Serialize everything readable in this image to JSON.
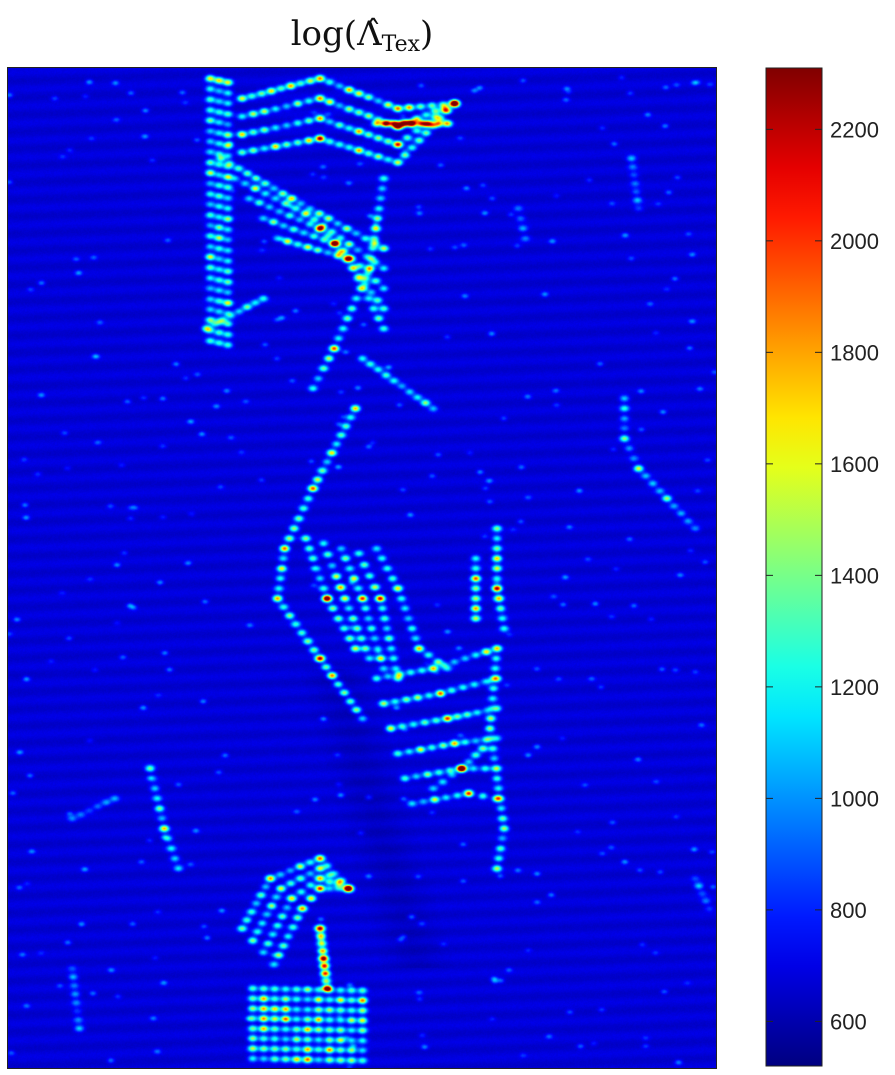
{
  "chart_data": {
    "type": "heatmap",
    "title": "log(Λ̂Tex)",
    "title_parts": {
      "base": "log(",
      "symbol": "Λ̂",
      "subscript": "Tex",
      "close": ")"
    },
    "colormap": "jet",
    "colorbar": {
      "range": [
        520,
        2310
      ],
      "ticks": [
        600,
        800,
        1000,
        1200,
        1400,
        1600,
        1800,
        2000,
        2200
      ],
      "tick_labels": [
        "600",
        "800",
        "1000",
        "1200",
        "1400",
        "1600",
        "1800",
        "2000",
        "2200"
      ]
    },
    "xlabel": "",
    "ylabel": "",
    "grid": false,
    "background_level": 640,
    "texture_bands": [
      {
        "name": "upper-left column",
        "x": [
          0.26,
          0.33
        ],
        "y": [
          0.0,
          0.28
        ],
        "peak": 1950
      },
      {
        "name": "upper arc",
        "x": [
          0.32,
          0.64
        ],
        "y": [
          0.0,
          0.08
        ],
        "peak": 2150
      },
      {
        "name": "upper diagonal",
        "x": [
          0.33,
          0.55
        ],
        "y": [
          0.08,
          0.36
        ],
        "peak": 2050
      },
      {
        "name": "middle chevron",
        "x": [
          0.37,
          0.72
        ],
        "y": [
          0.36,
          0.7
        ],
        "peak": 1950
      },
      {
        "name": "lower diagonal",
        "x": [
          0.52,
          0.72
        ],
        "y": [
          0.6,
          0.8
        ],
        "peak": 1700
      },
      {
        "name": "lower arcs",
        "x": [
          0.33,
          0.5
        ],
        "y": [
          0.78,
          0.92
        ],
        "peak": 2250
      },
      {
        "name": "bottom block",
        "x": [
          0.33,
          0.54
        ],
        "y": [
          0.91,
          1.0
        ],
        "peak": 2150
      },
      {
        "name": "right column",
        "x": [
          0.86,
          0.99
        ],
        "y": [
          0.32,
          0.48
        ],
        "peak": 1200
      }
    ]
  }
}
